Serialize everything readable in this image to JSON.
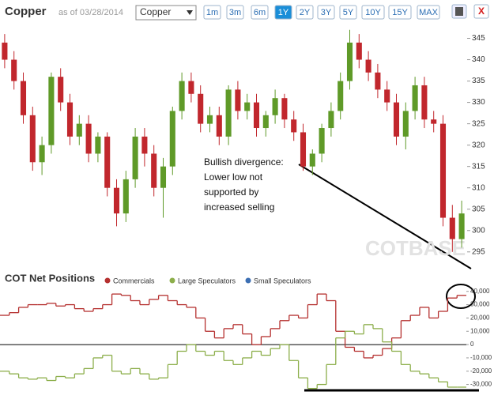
{
  "header": {
    "title": "Copper",
    "as_of": "as of 03/28/2014",
    "selector": "Copper",
    "buttons": [
      "1m",
      "3m",
      "6m",
      "1Y",
      "2Y",
      "3Y",
      "5Y",
      "10Y",
      "15Y",
      "MAX"
    ],
    "active_index": 3,
    "close": "X"
  },
  "chart_data": [
    {
      "type": "candlestick",
      "up_color": "#5f9a28",
      "down_color": "#c1272d",
      "open": [
        344,
        340,
        335,
        327,
        316,
        320,
        336,
        330,
        322,
        325,
        318,
        322,
        310,
        304,
        312,
        322,
        318,
        310,
        315,
        328,
        335,
        332,
        325,
        327,
        322,
        333,
        328,
        330,
        324,
        327,
        331,
        326,
        323,
        315,
        318,
        324,
        328,
        335,
        344,
        340,
        337,
        333,
        330,
        322,
        328,
        334,
        326,
        325,
        303,
        298
      ],
      "high": [
        346,
        342,
        337,
        329,
        322,
        337,
        338,
        332,
        327,
        327,
        323,
        323,
        312,
        314,
        324,
        324,
        320,
        317,
        329,
        337,
        337,
        334,
        329,
        329,
        334,
        335,
        332,
        332,
        328,
        333,
        332,
        328,
        325,
        319,
        325,
        330,
        337,
        347,
        346,
        342,
        339,
        335,
        332,
        330,
        336,
        336,
        328,
        327,
        306,
        307
      ],
      "low": [
        338,
        333,
        325,
        314,
        313,
        318,
        328,
        320,
        320,
        316,
        316,
        308,
        301,
        302,
        310,
        315,
        308,
        303,
        313,
        326,
        330,
        323,
        323,
        320,
        320,
        326,
        326,
        322,
        322,
        325,
        324,
        321,
        314,
        313,
        316,
        322,
        326,
        333,
        338,
        335,
        331,
        328,
        320,
        319,
        326,
        324,
        323,
        301,
        295,
        296
      ],
      "close": [
        340,
        335,
        327,
        316,
        320,
        336,
        330,
        322,
        325,
        318,
        322,
        310,
        304,
        312,
        322,
        318,
        310,
        315,
        328,
        335,
        332,
        325,
        327,
        322,
        333,
        328,
        330,
        324,
        327,
        331,
        326,
        323,
        315,
        318,
        324,
        328,
        335,
        344,
        340,
        337,
        333,
        330,
        322,
        328,
        334,
        326,
        325,
        303,
        298,
        304
      ],
      "ylim": [
        292,
        347.5
      ],
      "yticks": [
        295,
        300,
        305,
        310,
        315,
        320,
        325,
        330,
        335,
        340,
        345
      ],
      "annotation": [
        "Bullish divergence:",
        "Lower low not",
        "supported by",
        "increased selling"
      ],
      "watermark": "COTBASE"
    },
    {
      "type": "step",
      "title": "COT Net Positions",
      "series": [
        {
          "name": "Commercials",
          "color": "#b5302f",
          "values": [
            22000,
            24000,
            28000,
            30000,
            30000,
            31000,
            29000,
            30000,
            27000,
            25000,
            27000,
            30000,
            38000,
            37000,
            33000,
            30000,
            34000,
            37000,
            33000,
            30000,
            28000,
            20000,
            10000,
            5000,
            12000,
            15000,
            8000,
            0,
            6000,
            12000,
            18000,
            22000,
            20000,
            30000,
            38000,
            33000,
            10000,
            -2000,
            -5000,
            -10000,
            -8000,
            -3000,
            5000,
            18000,
            22000,
            28000,
            20000,
            25000,
            35000,
            37000
          ]
        },
        {
          "name": "Large Speculators",
          "color": "#8cae4a",
          "values": [
            -20000,
            -22000,
            -25000,
            -26000,
            -25000,
            -27000,
            -24000,
            -25000,
            -22000,
            -18000,
            -10000,
            -8000,
            -20000,
            -22000,
            -18000,
            -22000,
            -26000,
            -25000,
            -15000,
            -5000,
            0,
            -5000,
            -8000,
            -5000,
            -12000,
            -15000,
            -10000,
            -5000,
            -8000,
            -3000,
            0,
            -12000,
            -25000,
            -33000,
            -30000,
            -15000,
            5000,
            10000,
            8000,
            15000,
            12000,
            2000,
            -5000,
            -15000,
            -20000,
            -22000,
            -25000,
            -28000,
            -32000,
            -32000
          ]
        },
        {
          "name": "Small Speculators",
          "color": "#3c6fb3"
        }
      ],
      "ylim": [
        -35000,
        44000
      ],
      "yticks": [
        {
          "value": 40000,
          "label": "40,000"
        },
        {
          "value": 30000,
          "label": "30,000"
        },
        {
          "value": 20000,
          "label": "20,000"
        },
        {
          "value": 10000,
          "label": "10,000"
        },
        0,
        {
          "value": -10000,
          "label": "-10,000"
        },
        {
          "value": -20000,
          "label": "-20,000"
        },
        {
          "value": -30000,
          "label": "-30,000"
        }
      ]
    }
  ]
}
